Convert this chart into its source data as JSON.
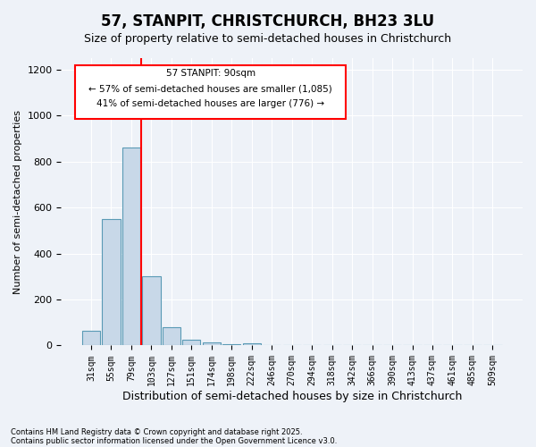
{
  "title": "57, STANPIT, CHRISTCHURCH, BH23 3LU",
  "subtitle": "Size of property relative to semi-detached houses in Christchurch",
  "xlabel": "Distribution of semi-detached houses by size in Christchurch",
  "ylabel": "Number of semi-detached properties",
  "footnote1": "Contains HM Land Registry data © Crown copyright and database right 2025.",
  "footnote2": "Contains public sector information licensed under the Open Government Licence v3.0.",
  "bin_labels": [
    "31sqm",
    "55sqm",
    "79sqm",
    "103sqm",
    "127sqm",
    "151sqm",
    "174sqm",
    "198sqm",
    "222sqm",
    "246sqm",
    "270sqm",
    "294sqm",
    "318sqm",
    "342sqm",
    "366sqm",
    "390sqm",
    "413sqm",
    "437sqm",
    "461sqm",
    "485sqm",
    "509sqm"
  ],
  "bar_values": [
    65,
    550,
    860,
    300,
    80,
    25,
    15,
    5,
    10,
    0,
    0,
    0,
    0,
    0,
    0,
    0,
    0,
    0,
    0,
    0,
    0
  ],
  "bar_color": "#c8d8e8",
  "bar_edge_color": "#5a9ab5",
  "background_color": "#eef2f8",
  "grid_color": "#ffffff",
  "red_line_x": 2.5,
  "property_label": "57 STANPIT: 90sqm",
  "smaller_label": "← 57% of semi-detached houses are smaller (1,085)",
  "larger_label": "41% of semi-detached houses are larger (776) →",
  "annotation_box_color": "#cc0000",
  "ylim": [
    0,
    1250
  ],
  "yticks": [
    0,
    200,
    400,
    600,
    800,
    1000,
    1200
  ]
}
